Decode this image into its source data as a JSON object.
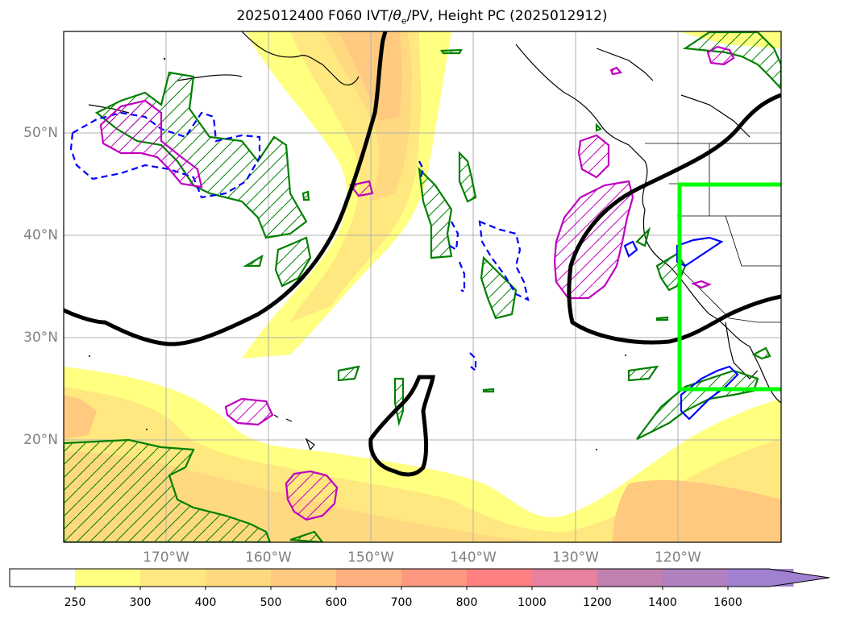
{
  "title": {
    "prefix": "2025012400 F060 IVT/",
    "theta": "θ",
    "sub": "e",
    "suffix": "/PV, Height PC (2025012912)"
  },
  "lat_labels": [
    "50°N",
    "40°N",
    "30°N",
    "20°N"
  ],
  "lon_labels": [
    "170°W",
    "160°W",
    "150°W",
    "140°W",
    "130°W",
    "120°W"
  ],
  "colorbar": {
    "ticks": [
      "250",
      "300",
      "400",
      "500",
      "600",
      "700",
      "800",
      "1000",
      "1200",
      "1400",
      "1600"
    ],
    "colors": [
      "#ffffff",
      "#ffff80",
      "#ffe880",
      "#ffd980",
      "#ffca80",
      "#ffb080",
      "#ff9880",
      "#ff8080",
      "#e880a0",
      "#c080b0",
      "#b080c0",
      "#a080d0"
    ]
  },
  "colors": {
    "pv_positive": "#008000",
    "theta_e_negative": "#0000ff",
    "theta_e_positive": "#c000c0",
    "height_pc": "#000000",
    "focus_box": "#00ff00",
    "coast": "#000000"
  }
}
